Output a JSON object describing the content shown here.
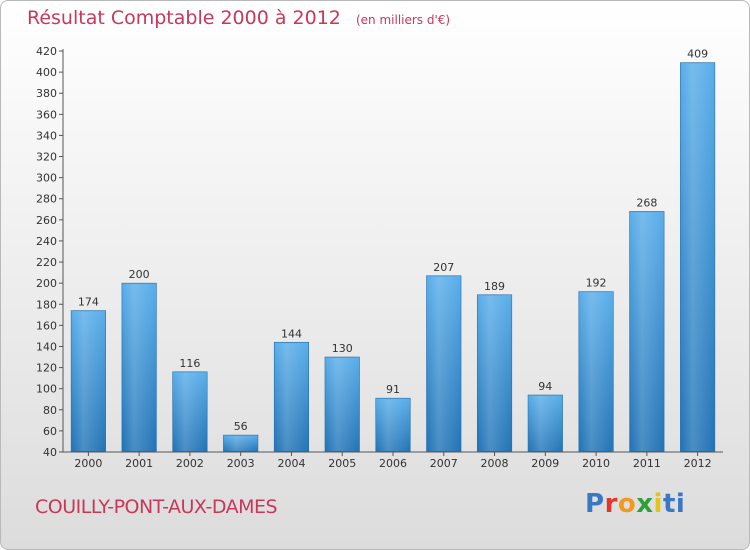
{
  "chart_data": {
    "type": "bar",
    "title": "Résultat Comptable 2000 à 2012",
    "subtitle": "(en milliers d'€)",
    "categories": [
      "2000",
      "2001",
      "2002",
      "2003",
      "2004",
      "2005",
      "2006",
      "2007",
      "2008",
      "2009",
      "2010",
      "2011",
      "2012"
    ],
    "values": [
      174,
      200,
      116,
      56,
      144,
      130,
      91,
      207,
      189,
      94,
      192,
      268,
      409
    ],
    "ylim": [
      40,
      420
    ],
    "ytick_step": 20,
    "xlabel": "",
    "ylabel": "",
    "grid": false,
    "bar_color": "#4a9de0",
    "bar_color_dark": "#2372b4"
  },
  "footer": {
    "place_name": "COUILLY-PONT-AUX-DAMES",
    "brand": "Proxiti"
  },
  "colors": {
    "title": "#c8385a",
    "axis": "#444444"
  }
}
